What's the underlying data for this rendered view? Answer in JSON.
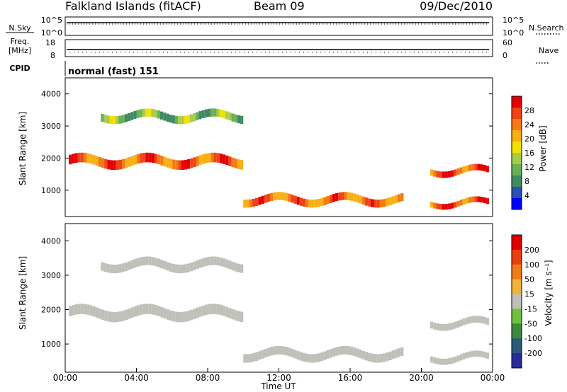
{
  "header": {
    "station": "Falkland Islands (fitACF)",
    "beam": "Beam 09",
    "date": "09/Dec/2010"
  },
  "left_labels": {
    "nsky": "N.Sky",
    "freq_line1": "Freq.",
    "freq_line2": "[MHz]",
    "cpid": "CPID"
  },
  "right_labels": {
    "nsearch": "N.Search",
    "nave": "Nave"
  },
  "cpid_value": "normal (fast) 151",
  "chart_data": [
    {
      "type": "line",
      "name": "noise",
      "ylabel_left": "N.Sky",
      "ylabel_right": "N.Search",
      "left_ticks": [
        "10^5",
        "10^0"
      ],
      "right_ticks": [
        "10^5",
        "10^0"
      ]
    },
    {
      "type": "scatter",
      "name": "frequency",
      "ylabel_left": "Freq. [MHz]",
      "ylabel_right": "Nave",
      "left_ticks": [
        "18",
        "8"
      ],
      "right_ticks": [
        "60",
        "0"
      ]
    },
    {
      "type": "heatmap",
      "name": "power",
      "ylabel": "Slant Range [km]",
      "y_ticks": [
        "4000",
        "3000",
        "2000",
        "1000"
      ],
      "ylim": [
        180,
        4500
      ],
      "colorbar_label": "Power [dB]",
      "colorbar_ticks": [
        "28",
        "24",
        "20",
        "16",
        "12",
        "8",
        "4"
      ],
      "colorbar_colors": [
        "#0000ff",
        "#2a4fb5",
        "#3f8a63",
        "#69b055",
        "#a7cc4a",
        "#f4e000",
        "#f7b014",
        "#f47a12",
        "#ef4317",
        "#e50000"
      ],
      "bands": [
        {
          "x_start": 0.2,
          "x_end": 10.0,
          "r_center": 1900,
          "r_width": 300,
          "power": 25
        },
        {
          "x_start": 10.0,
          "x_end": 19.0,
          "r_center": 700,
          "r_width": 250,
          "power": 24
        },
        {
          "x_start": 2.0,
          "x_end": 10.0,
          "r_center": 3300,
          "r_width": 250,
          "power": 12
        },
        {
          "x_start": 20.5,
          "x_end": 23.8,
          "r_center": 1600,
          "r_width": 200,
          "power": 26
        },
        {
          "x_start": 20.5,
          "x_end": 23.8,
          "r_center": 600,
          "r_width": 180,
          "power": 26
        }
      ]
    },
    {
      "type": "heatmap",
      "name": "velocity",
      "ylabel": "Slant Range [km]",
      "y_ticks": [
        "4000",
        "3000",
        "2000",
        "1000"
      ],
      "ylim": [
        180,
        4500
      ],
      "colorbar_label": "Velocity [m s⁻¹]",
      "colorbar_ticks": [
        "200",
        "100",
        "50",
        "15",
        "-15",
        "-50",
        "-100",
        "-200"
      ],
      "colorbar_colors": [
        "#2a2a9a",
        "#2e5a7a",
        "#3c8a3c",
        "#70c040",
        "#c0c0b8",
        "#f2b23a",
        "#f07a18",
        "#e84010",
        "#e00000"
      ],
      "x_ticks": [
        "00:00",
        "04:00",
        "08:00",
        "12:00",
        "16:00",
        "20:00",
        "00:00"
      ],
      "xlabel": "Time UT",
      "xlim": [
        0,
        24
      ]
    }
  ]
}
